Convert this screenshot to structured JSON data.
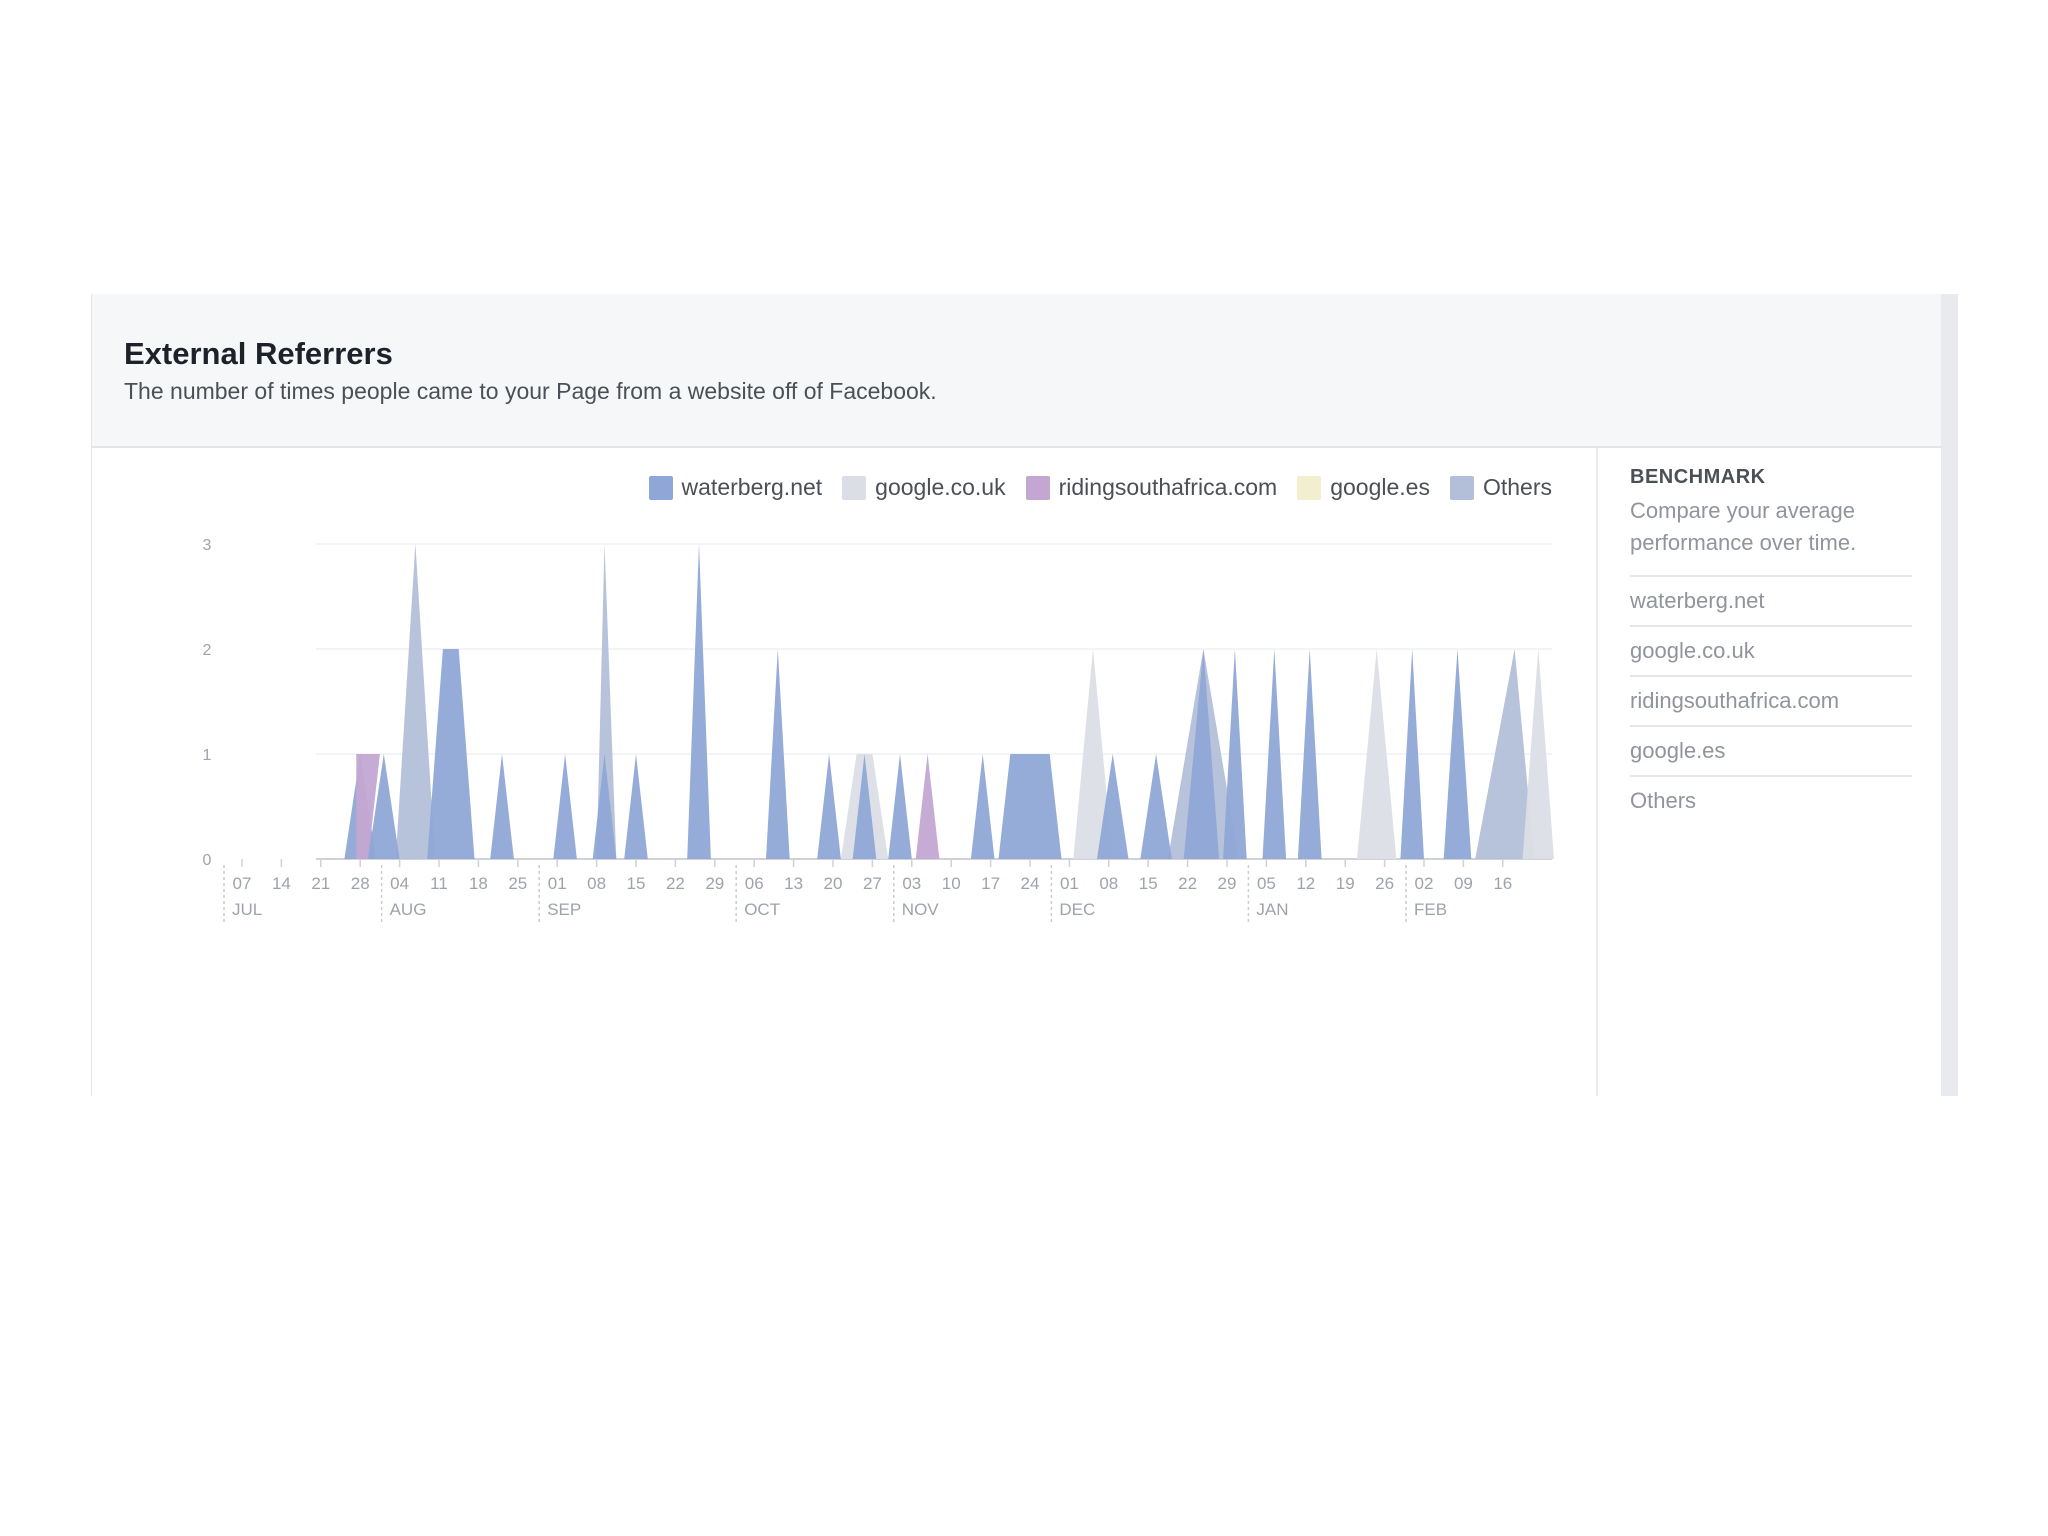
{
  "header": {
    "title": "External Referrers",
    "subtitle": "The number of times people came to your Page from a website off of Facebook."
  },
  "benchmark": {
    "title": "BENCHMARK",
    "description": "Compare your average performance over time.",
    "items": [
      "waterberg.net",
      "google.co.uk",
      "ridingsouthafrica.com",
      "google.es",
      "Others"
    ]
  },
  "colors": {
    "waterberg.net": "#8fa6d6",
    "google.co.uk": "#dcdee6",
    "ridingsouthafrica.com": "#c3a6d2",
    "google.es": "#f1efcf",
    "Others": "#b3bfd9"
  },
  "chart_data": {
    "type": "area",
    "title": "",
    "xlabel": "",
    "ylabel": "",
    "ylim": [
      0,
      3
    ],
    "yticks": [
      0,
      1,
      2,
      3
    ],
    "grid": true,
    "legend_position": "top-right",
    "x_tick_labels": [
      "07",
      "14",
      "21",
      "28",
      "04",
      "11",
      "18",
      "25",
      "01",
      "08",
      "15",
      "22",
      "29",
      "06",
      "13",
      "20",
      "27",
      "03",
      "10",
      "17",
      "24",
      "01",
      "08",
      "15",
      "22",
      "29",
      "05",
      "12",
      "19",
      "26",
      "02",
      "09",
      "16"
    ],
    "month_labels": [
      {
        "label": "JUL",
        "tick": "07"
      },
      {
        "label": "AUG",
        "tick": "04"
      },
      {
        "label": "SEP",
        "tick": "01"
      },
      {
        "label": "OCT",
        "tick": "06"
      },
      {
        "label": "NOV",
        "tick": "03"
      },
      {
        "label": "DEC",
        "tick": "01"
      },
      {
        "label": "JAN",
        "tick": "05"
      },
      {
        "label": "FEB",
        "tick": "02"
      }
    ],
    "series": [
      {
        "name": "Others",
        "points": [
          [
            3.9,
            0
          ],
          [
            4.4,
            3
          ],
          [
            4.9,
            0
          ],
          [
            9.0,
            0
          ],
          [
            9.2,
            3
          ],
          [
            9.5,
            0
          ],
          [
            23.5,
            0
          ],
          [
            24.4,
            2
          ],
          [
            25.3,
            0
          ],
          [
            31.3,
            0
          ],
          [
            31.8,
            1
          ],
          [
            32.3,
            2
          ],
          [
            32.8,
            0
          ]
        ]
      },
      {
        "name": "google.co.uk",
        "points": [
          [
            15.2,
            0
          ],
          [
            15.6,
            1
          ],
          [
            16.0,
            1
          ],
          [
            16.4,
            0
          ],
          [
            21.1,
            0
          ],
          [
            21.6,
            2
          ],
          [
            22.1,
            0
          ],
          [
            28.3,
            0
          ],
          [
            28.8,
            2
          ],
          [
            29.3,
            0
          ],
          [
            32.5,
            0
          ],
          [
            32.9,
            2
          ],
          [
            33.3,
            0
          ]
        ]
      },
      {
        "name": "waterberg.net",
        "points": [
          [
            2.6,
            0
          ],
          [
            3.0,
            1
          ],
          [
            3.4,
            0
          ],
          [
            3.2,
            0
          ],
          [
            3.6,
            1
          ],
          [
            4.0,
            0
          ],
          [
            4.7,
            0
          ],
          [
            5.1,
            2
          ],
          [
            5.5,
            2
          ],
          [
            5.9,
            0
          ],
          [
            6.3,
            0
          ],
          [
            6.6,
            1
          ],
          [
            6.9,
            0
          ],
          [
            7.9,
            0
          ],
          [
            8.2,
            1
          ],
          [
            8.5,
            0
          ],
          [
            8.9,
            0
          ],
          [
            9.2,
            1
          ],
          [
            9.5,
            0
          ],
          [
            9.7,
            0
          ],
          [
            10.0,
            1
          ],
          [
            10.3,
            0
          ],
          [
            11.3,
            0
          ],
          [
            11.6,
            3
          ],
          [
            11.9,
            0
          ],
          [
            13.3,
            0
          ],
          [
            13.6,
            2
          ],
          [
            13.9,
            0
          ],
          [
            14.6,
            0
          ],
          [
            14.9,
            1
          ],
          [
            15.2,
            0
          ],
          [
            15.5,
            0
          ],
          [
            15.8,
            1
          ],
          [
            16.1,
            0
          ],
          [
            16.4,
            0
          ],
          [
            16.7,
            1
          ],
          [
            17.0,
            0
          ],
          [
            18.5,
            0
          ],
          [
            18.8,
            1
          ],
          [
            19.1,
            0
          ],
          [
            19.2,
            0
          ],
          [
            19.5,
            1
          ],
          [
            20.5,
            1
          ],
          [
            20.8,
            0
          ],
          [
            21.7,
            0
          ],
          [
            22.1,
            1
          ],
          [
            22.5,
            0
          ],
          [
            22.8,
            0
          ],
          [
            23.2,
            1
          ],
          [
            23.6,
            0
          ],
          [
            23.9,
            0
          ],
          [
            24.4,
            2
          ],
          [
            24.8,
            0
          ],
          [
            24.9,
            0
          ],
          [
            25.2,
            2
          ],
          [
            25.5,
            0
          ],
          [
            25.9,
            0
          ],
          [
            26.2,
            2
          ],
          [
            26.5,
            0
          ],
          [
            26.8,
            0
          ],
          [
            27.1,
            2
          ],
          [
            27.4,
            0
          ],
          [
            29.4,
            0
          ],
          [
            29.7,
            2
          ],
          [
            30.0,
            0
          ],
          [
            30.5,
            0
          ],
          [
            30.85,
            2
          ],
          [
            31.2,
            0
          ]
        ]
      },
      {
        "name": "ridingsouthafrica.com",
        "points": [
          [
            2.9,
            1
          ],
          [
            3.5,
            1
          ],
          [
            3.2,
            0
          ],
          [
            17.1,
            0
          ],
          [
            17.4,
            1
          ],
          [
            17.7,
            0
          ]
        ]
      }
    ]
  }
}
